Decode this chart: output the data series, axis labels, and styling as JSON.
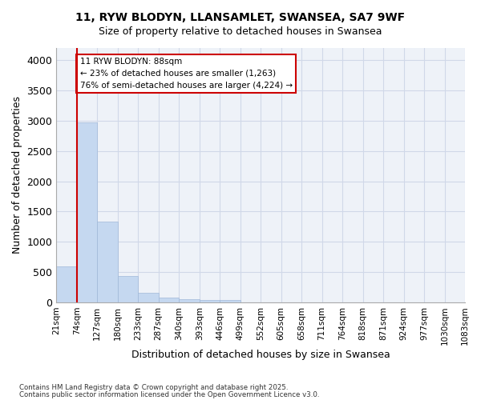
{
  "title_line1": "11, RYW BLODYN, LLANSAMLET, SWANSEA, SA7 9WF",
  "title_line2": "Size of property relative to detached houses in Swansea",
  "xlabel": "Distribution of detached houses by size in Swansea",
  "ylabel": "Number of detached properties",
  "bar_values": [
    600,
    2970,
    1330,
    430,
    160,
    80,
    55,
    45,
    35,
    0,
    0,
    0,
    0,
    0,
    0,
    0,
    0,
    0,
    0,
    0
  ],
  "bin_labels": [
    "21sqm",
    "74sqm",
    "127sqm",
    "180sqm",
    "233sqm",
    "287sqm",
    "340sqm",
    "393sqm",
    "446sqm",
    "499sqm",
    "552sqm",
    "605sqm",
    "658sqm",
    "711sqm",
    "764sqm",
    "818sqm",
    "871sqm",
    "924sqm",
    "977sqm",
    "1030sqm",
    "1083sqm"
  ],
  "bar_color": "#c5d8f0",
  "bar_edge_color": "#a0b8d8",
  "grid_color": "#d0d8e8",
  "bg_color": "#eef2f8",
  "annotation_text": "11 RYW BLODYN: 88sqm\n← 23% of detached houses are smaller (1,263)\n76% of semi-detached houses are larger (4,224) →",
  "vline_pos": 0.5,
  "vline_color": "#cc0000",
  "annotation_box_color": "#cc0000",
  "ylim": [
    0,
    4200
  ],
  "yticks": [
    0,
    500,
    1000,
    1500,
    2000,
    2500,
    3000,
    3500,
    4000
  ],
  "footer_line1": "Contains HM Land Registry data © Crown copyright and database right 2025.",
  "footer_line2": "Contains public sector information licensed under the Open Government Licence v3.0."
}
